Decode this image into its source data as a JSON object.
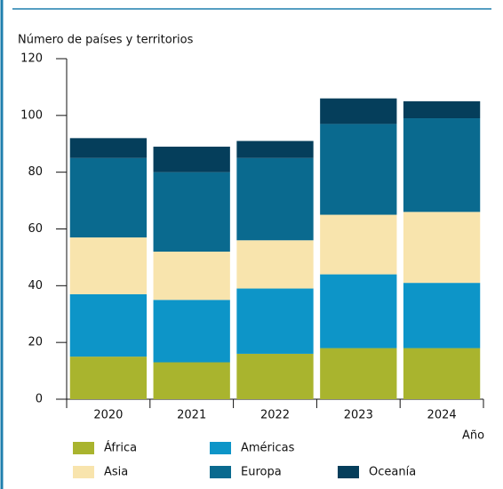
{
  "chart_data": {
    "type": "stacked_bar",
    "y_label": "Número de países y territorios",
    "x_label": "Año",
    "categories": [
      "2020",
      "2021",
      "2022",
      "2023",
      "2024"
    ],
    "series": [
      {
        "name": "África",
        "color": "#a9b42e",
        "values": [
          15,
          13,
          16,
          18,
          18
        ]
      },
      {
        "name": "Américas",
        "color": "#0d95c8",
        "values": [
          22,
          22,
          23,
          26,
          23
        ]
      },
      {
        "name": "Asia",
        "color": "#f8e4ad",
        "values": [
          20,
          17,
          17,
          21,
          25
        ]
      },
      {
        "name": "Europa",
        "color": "#0a6a8f",
        "values": [
          28,
          28,
          29,
          32,
          33
        ]
      },
      {
        "name": "Oceanía",
        "color": "#053e5b",
        "values": [
          7,
          9,
          6,
          9,
          6
        ]
      }
    ],
    "ylim": [
      0,
      120
    ],
    "yticks": [
      0,
      20,
      40,
      60,
      80,
      100,
      120
    ]
  }
}
